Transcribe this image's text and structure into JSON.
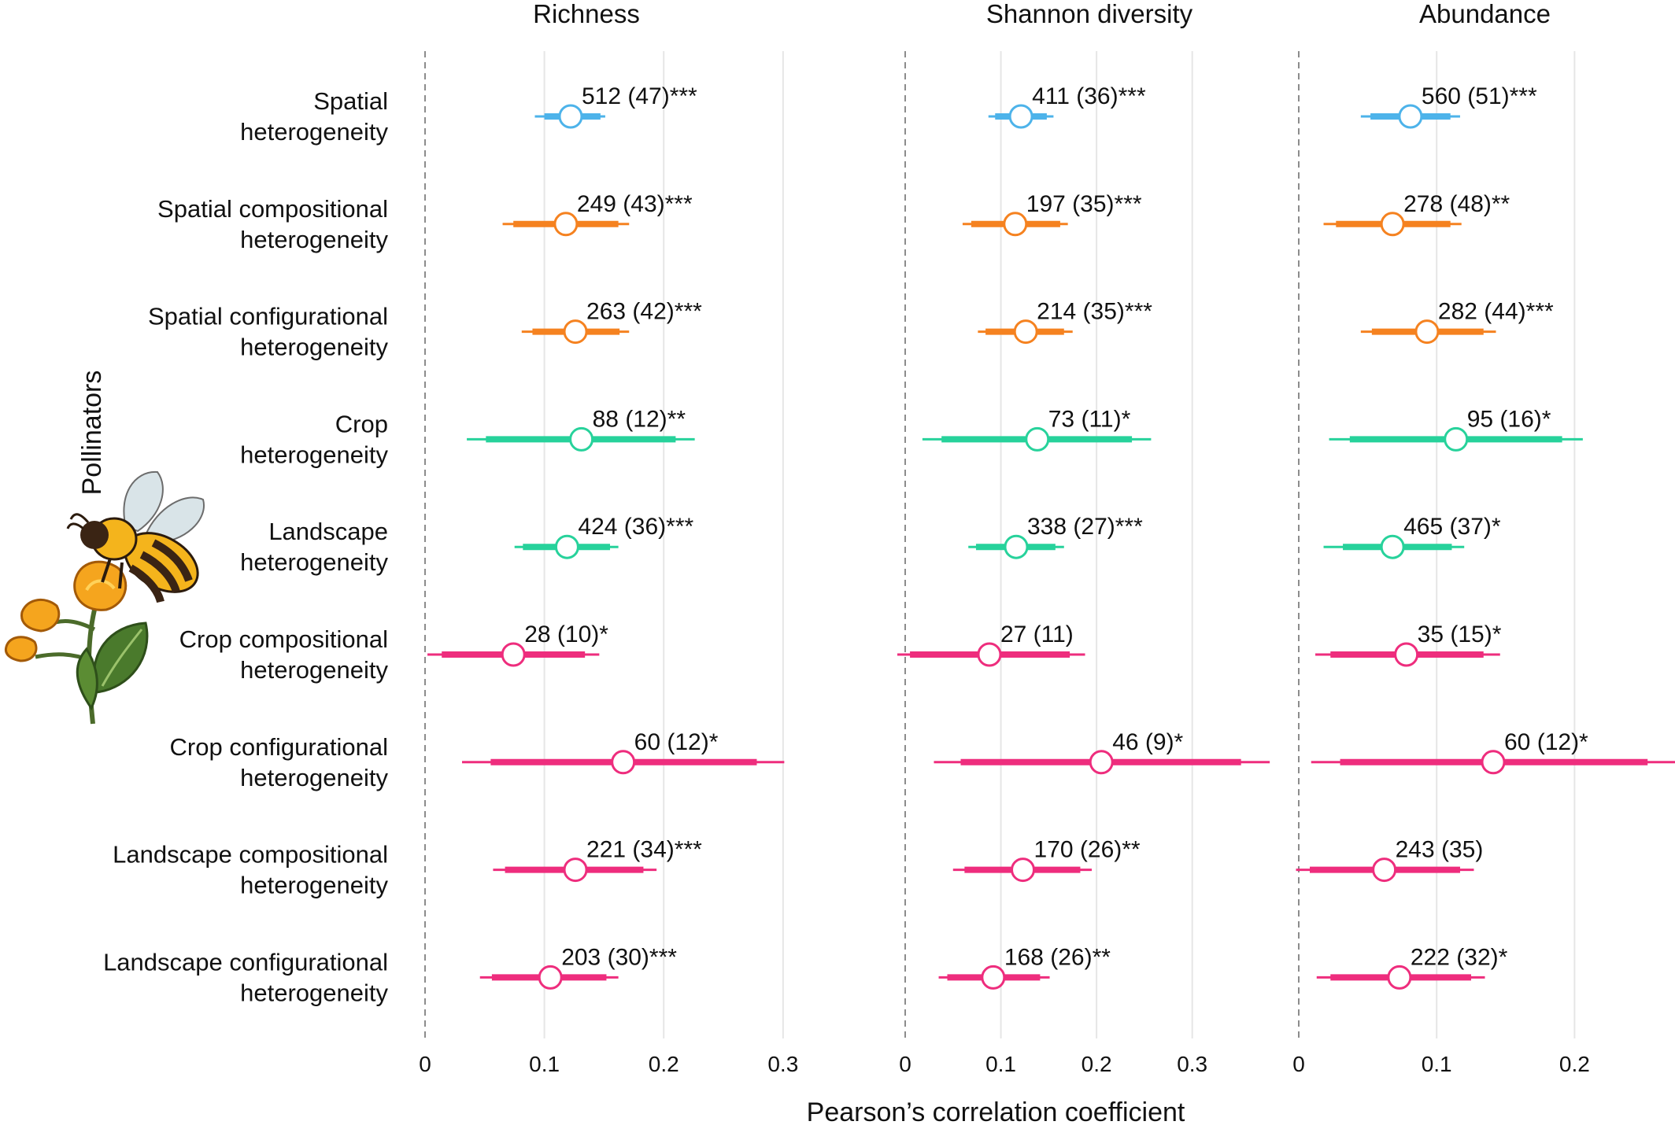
{
  "chart_data": {
    "type": "forest",
    "xlabel": "Pearson’s correlation coefficient",
    "ylabel": "Pollinators",
    "grid": "vertical",
    "colors": {
      "spatial": "#4db3ea",
      "spatial_sub": "#f58220",
      "crop_landscape": "#27d29b",
      "sub": "#ee2d7d"
    },
    "rows": [
      {
        "label": [
          "Spatial",
          "heterogeneity"
        ],
        "color": "#4db3ea"
      },
      {
        "label": [
          "Spatial compositional",
          "heterogeneity"
        ],
        "color": "#f58220"
      },
      {
        "label": [
          "Spatial configurational",
          "heterogeneity"
        ],
        "color": "#f58220"
      },
      {
        "label": [
          "Crop",
          "heterogeneity"
        ],
        "color": "#27d29b"
      },
      {
        "label": [
          "Landscape",
          "heterogeneity"
        ],
        "color": "#27d29b"
      },
      {
        "label": [
          "Crop compositional",
          "heterogeneity"
        ],
        "color": "#ee2d7d"
      },
      {
        "label": [
          "Crop configurational",
          "heterogeneity"
        ],
        "color": "#ee2d7d"
      },
      {
        "label": [
          "Landscape compositional",
          "heterogeneity"
        ],
        "color": "#ee2d7d"
      },
      {
        "label": [
          "Landscape configurational",
          "heterogeneity"
        ],
        "color": "#ee2d7d"
      }
    ],
    "panels": [
      {
        "title": "Richness",
        "xlim": [
          0,
          0.31
        ],
        "ticks": [
          0,
          0.1,
          0.2,
          0.3
        ],
        "tick_labels": [
          "0",
          "0.1",
          "0.2",
          "0.3"
        ],
        "points": [
          {
            "est": 0.122,
            "thick": [
              0.1,
              0.147
            ],
            "thin": [
              0.092,
              0.151
            ],
            "label": "512 (47)***"
          },
          {
            "est": 0.118,
            "thick": [
              0.074,
              0.162
            ],
            "thin": [
              0.065,
              0.171
            ],
            "label": "249 (43)***"
          },
          {
            "est": 0.126,
            "thick": [
              0.09,
              0.163
            ],
            "thin": [
              0.081,
              0.171
            ],
            "label": "263 (42)***"
          },
          {
            "est": 0.131,
            "thick": [
              0.051,
              0.21
            ],
            "thin": [
              0.035,
              0.226
            ],
            "label": "88 (12)**"
          },
          {
            "est": 0.119,
            "thick": [
              0.082,
              0.155
            ],
            "thin": [
              0.075,
              0.162
            ],
            "label": "424 (36)***"
          },
          {
            "est": 0.074,
            "thick": [
              0.014,
              0.134
            ],
            "thin": [
              0.002,
              0.146
            ],
            "label": "28 (10)*"
          },
          {
            "est": 0.166,
            "thick": [
              0.055,
              0.278
            ],
            "thin": [
              0.031,
              0.301
            ],
            "label": "60 (12)*"
          },
          {
            "est": 0.126,
            "thick": [
              0.067,
              0.183
            ],
            "thin": [
              0.057,
              0.194
            ],
            "label": "221 (34)***"
          },
          {
            "est": 0.105,
            "thick": [
              0.056,
              0.152
            ],
            "thin": [
              0.046,
              0.162
            ],
            "label": "203 (30)***"
          }
        ]
      },
      {
        "title": "Shannon diversity",
        "xlim": [
          0,
          0.385
        ],
        "ticks": [
          0,
          0.1,
          0.2,
          0.3
        ],
        "tick_labels": [
          "0",
          "0.1",
          "0.2",
          "0.3"
        ],
        "points": [
          {
            "est": 0.121,
            "thick": [
              0.094,
              0.148
            ],
            "thin": [
              0.087,
              0.155
            ],
            "label": "411 (36)***"
          },
          {
            "est": 0.115,
            "thick": [
              0.069,
              0.162
            ],
            "thin": [
              0.06,
              0.17
            ],
            "label": "197 (35)***"
          },
          {
            "est": 0.126,
            "thick": [
              0.084,
              0.166
            ],
            "thin": [
              0.076,
              0.175
            ],
            "label": "214 (35)***"
          },
          {
            "est": 0.138,
            "thick": [
              0.038,
              0.237
            ],
            "thin": [
              0.018,
              0.257
            ],
            "label": "73 (11)*"
          },
          {
            "est": 0.116,
            "thick": [
              0.074,
              0.157
            ],
            "thin": [
              0.066,
              0.166
            ],
            "label": "338 (27)***"
          },
          {
            "est": 0.088,
            "thick": [
              0.005,
              0.172
            ],
            "thin": [
              -0.01,
              0.188
            ],
            "label": "27 (11)"
          },
          {
            "est": 0.205,
            "thick": [
              0.058,
              0.351
            ],
            "thin": [
              0.03,
              0.381
            ],
            "label": "46 (9)*"
          },
          {
            "est": 0.123,
            "thick": [
              0.062,
              0.183
            ],
            "thin": [
              0.05,
              0.195
            ],
            "label": "170 (26)**"
          },
          {
            "est": 0.092,
            "thick": [
              0.044,
              0.141
            ],
            "thin": [
              0.035,
              0.151
            ],
            "label": "168 (26)**"
          }
        ]
      },
      {
        "title": "Abundance",
        "xlim": [
          0,
          0.27
        ],
        "ticks": [
          0,
          0.1,
          0.2
        ],
        "tick_labels": [
          "0",
          "0.1",
          "0.2"
        ],
        "points": [
          {
            "est": 0.081,
            "thick": [
              0.052,
              0.11
            ],
            "thin": [
              0.045,
              0.117
            ],
            "label": "560 (51)***"
          },
          {
            "est": 0.068,
            "thick": [
              0.027,
              0.11
            ],
            "thin": [
              0.018,
              0.118
            ],
            "label": "278 (48)**"
          },
          {
            "est": 0.093,
            "thick": [
              0.053,
              0.134
            ],
            "thin": [
              0.045,
              0.143
            ],
            "label": "282 (44)***"
          },
          {
            "est": 0.114,
            "thick": [
              0.037,
              0.191
            ],
            "thin": [
              0.022,
              0.206
            ],
            "label": "95 (16)*"
          },
          {
            "est": 0.068,
            "thick": [
              0.032,
              0.111
            ],
            "thin": [
              0.018,
              0.12
            ],
            "label": "465 (37)*"
          },
          {
            "est": 0.078,
            "thick": [
              0.023,
              0.134
            ],
            "thin": [
              0.012,
              0.146
            ],
            "label": "35 (15)*"
          },
          {
            "est": 0.141,
            "thick": [
              0.03,
              0.253
            ],
            "thin": [
              0.009,
              0.275
            ],
            "label": "60 (12)*"
          },
          {
            "est": 0.062,
            "thick": [
              0.008,
              0.117
            ],
            "thin": [
              -0.002,
              0.127
            ],
            "label": "243 (35)"
          },
          {
            "est": 0.073,
            "thick": [
              0.023,
              0.125
            ],
            "thin": [
              0.013,
              0.135
            ],
            "label": "222 (32)*"
          }
        ]
      }
    ]
  }
}
